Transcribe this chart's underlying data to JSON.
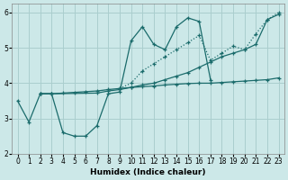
{
  "xlabel": "Humidex (Indice chaleur)",
  "xlim": [
    -0.5,
    23.5
  ],
  "ylim": [
    2.0,
    6.25
  ],
  "yticks": [
    2,
    3,
    4,
    5,
    6
  ],
  "xticks": [
    0,
    1,
    2,
    3,
    4,
    5,
    6,
    7,
    8,
    9,
    10,
    11,
    12,
    13,
    14,
    15,
    16,
    17,
    18,
    19,
    20,
    21,
    22,
    23
  ],
  "bg_color": "#cce8e8",
  "grid_color": "#aacece",
  "line_color": "#1a6b6b",
  "lines": [
    {
      "x": [
        0,
        1,
        2,
        3,
        4,
        5,
        6,
        7,
        8,
        9,
        10,
        11,
        12,
        13,
        14,
        15,
        16,
        17
      ],
      "y": [
        3.5,
        2.9,
        3.7,
        3.7,
        2.6,
        2.5,
        2.5,
        2.8,
        3.7,
        3.75,
        5.2,
        5.6,
        5.1,
        4.95,
        5.6,
        5.85,
        5.75,
        4.1
      ],
      "marker": "+"
    },
    {
      "x": [
        9,
        10,
        11,
        12,
        13,
        14,
        15,
        16,
        17,
        18,
        19,
        20,
        21,
        22,
        23
      ],
      "y": [
        3.85,
        4.0,
        4.35,
        4.55,
        4.75,
        4.95,
        5.15,
        5.35,
        4.65,
        4.85,
        5.05,
        4.95,
        5.4,
        5.8,
        6.0
      ],
      "marker": "+"
    },
    {
      "x": [
        2,
        3,
        4,
        5,
        6,
        7,
        8,
        9,
        10,
        11,
        12,
        13,
        14,
        15,
        16,
        17,
        18,
        19,
        20,
        21,
        22,
        23
      ],
      "y": [
        3.7,
        3.7,
        3.72,
        3.74,
        3.76,
        3.78,
        3.82,
        3.85,
        3.88,
        3.9,
        3.92,
        3.95,
        3.97,
        3.99,
        4.0,
        4.0,
        4.02,
        4.04,
        4.06,
        4.08,
        4.1,
        4.15
      ],
      "marker": "+"
    },
    {
      "x": [
        2,
        3,
        7,
        8,
        9,
        10,
        11,
        12,
        13,
        14,
        15,
        16,
        17,
        18,
        19,
        20,
        21,
        22,
        23
      ],
      "y": [
        3.7,
        3.7,
        3.72,
        3.78,
        3.82,
        3.88,
        3.95,
        4.0,
        4.1,
        4.2,
        4.3,
        4.45,
        4.6,
        4.75,
        4.85,
        4.95,
        5.1,
        5.8,
        5.95
      ],
      "marker": "+"
    }
  ]
}
